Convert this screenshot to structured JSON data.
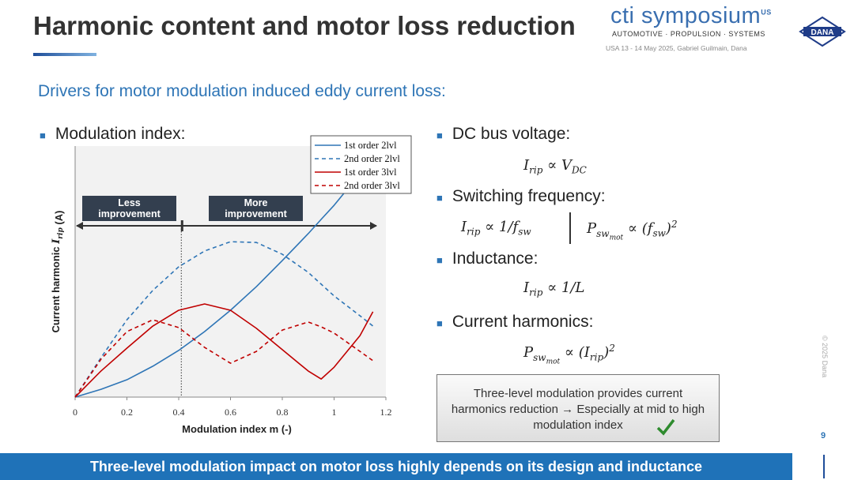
{
  "header": {
    "title": "Harmonic content and motor loss reduction",
    "logo": {
      "name": "cti symposium",
      "region": "US",
      "tagline": "AUTOMOTIVE · PROPULSION · SYSTEMS",
      "event": "USA 13 - 14 May 2025, Gabriel Guilmain, Dana"
    },
    "company_logo": "DANA"
  },
  "subtitle": "Drivers for motor modulation induced eddy current loss:",
  "left_bullet": "Modulation index:",
  "chart_data": {
    "type": "line",
    "xlabel": "Modulation index m (-)",
    "ylabel": [
      {
        "text": "Current harmonic "
      },
      {
        "text": "I",
        "sub": "rip"
      },
      {
        "text": " (A)"
      }
    ],
    "x": [
      0,
      0.1,
      0.2,
      0.3,
      0.4,
      0.5,
      0.6,
      0.7,
      0.8,
      0.9,
      0.95,
      1.0,
      1.1,
      1.15
    ],
    "xlim": [
      0,
      1.2
    ],
    "xticks": [
      0,
      0.2,
      0.4,
      0.6,
      0.8,
      1,
      1.2
    ],
    "ylim": [
      0,
      1
    ],
    "series": [
      {
        "name": "1st order 2lvl",
        "color": "#2e75b6",
        "dashed": false,
        "values": [
          0,
          0.031,
          0.069,
          0.123,
          0.186,
          0.261,
          0.346,
          0.44,
          0.544,
          0.651,
          0.708,
          0.764,
          0.89,
          null
        ]
      },
      {
        "name": "2nd order 2lvl",
        "color": "#2e75b6",
        "dashed": true,
        "values": [
          0,
          0.157,
          0.308,
          0.425,
          0.519,
          0.582,
          0.619,
          0.616,
          0.569,
          0.497,
          0.45,
          0.403,
          0.324,
          0.283
        ]
      },
      {
        "name": "1st order 3lvl",
        "color": "#c00000",
        "dashed": false,
        "values": [
          0,
          0.104,
          0.195,
          0.283,
          0.346,
          0.371,
          0.346,
          0.274,
          0.189,
          0.104,
          0.072,
          0.119,
          0.245,
          0.34
        ]
      },
      {
        "name": "2nd order 3lvl",
        "color": "#c00000",
        "dashed": true,
        "values": [
          0,
          0.151,
          0.261,
          0.308,
          0.277,
          0.198,
          0.135,
          0.182,
          0.267,
          0.299,
          0.28,
          0.255,
          0.182,
          0.145
        ]
      }
    ],
    "threshold_x": 0.41,
    "annotations": [
      "Less improvement",
      "More improvement"
    ]
  },
  "drivers": [
    {
      "label": "DC bus voltage:",
      "formulas": [
        [
          {
            "text": "I",
            "sub": "rip"
          },
          {
            "text": " ∝ "
          },
          {
            "text": "V",
            "sub": "DC"
          }
        ]
      ]
    },
    {
      "label": "Switching frequency:",
      "formulas": [
        [
          {
            "text": "I",
            "sub": "rip"
          },
          {
            "text": " ∝ 1/"
          },
          {
            "text": "f",
            "sub": "sw"
          }
        ],
        [
          {
            "text": "P",
            "sub": "sw",
            "subsub": "mot"
          },
          {
            "text": " ∝ ("
          },
          {
            "text": "f",
            "sub": "sw"
          },
          {
            "text": ")",
            "sup": "2"
          }
        ]
      ]
    },
    {
      "label": "Inductance:",
      "formulas": [
        [
          {
            "text": "I",
            "sub": "rip"
          },
          {
            "text": " ∝ 1/L"
          }
        ]
      ]
    },
    {
      "label": "Current harmonics:",
      "formulas": [
        [
          {
            "text": "P",
            "sub": "sw",
            "subsub": "mot"
          },
          {
            "text": " ∝ ("
          },
          {
            "text": "I",
            "sub": "rip"
          },
          {
            "text": ")",
            "sup": "2"
          }
        ]
      ]
    }
  ],
  "conclusion": "Three-level modulation provides current harmonics reduction → Especially at mid to high modulation index",
  "copyright": "© 2025 Dana",
  "page_number": "9",
  "banner": "Three-level modulation impact on motor loss highly depends on its design and inductance"
}
